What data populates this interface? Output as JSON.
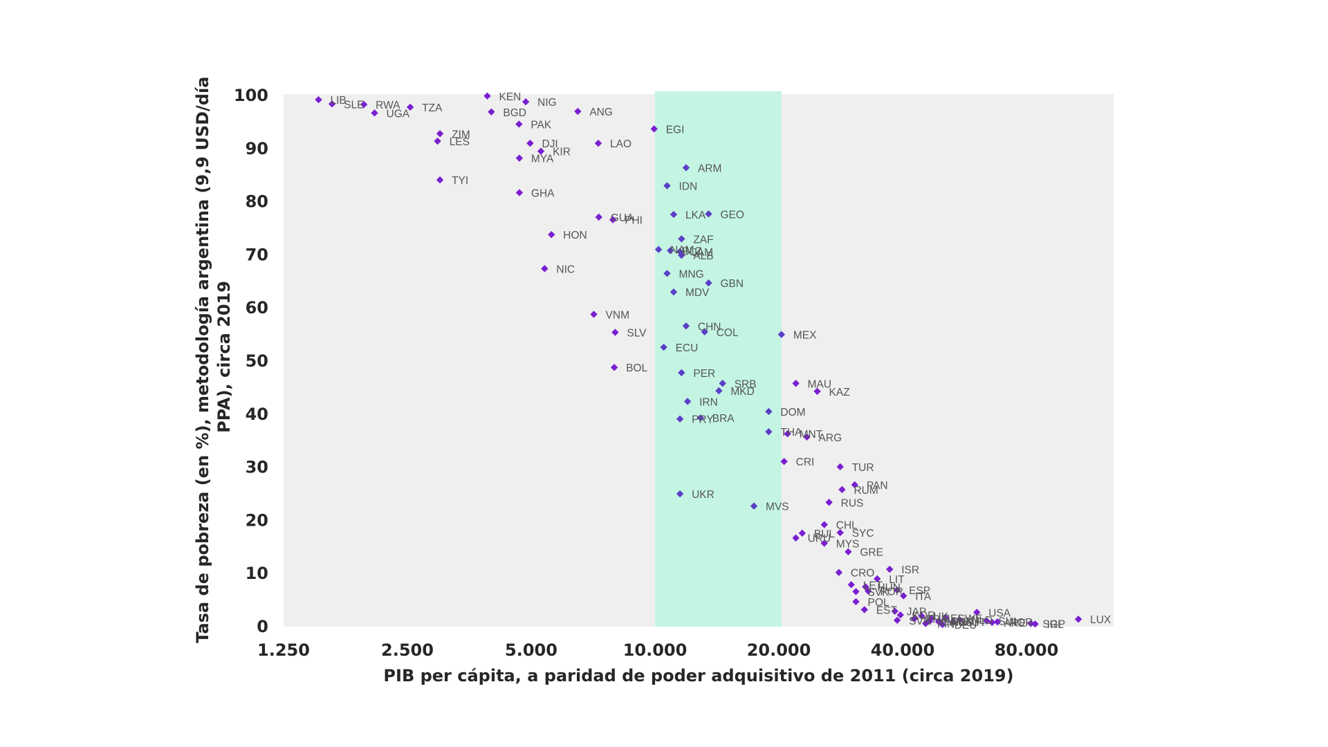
{
  "chart_data": {
    "type": "scatter",
    "title": "",
    "xlabel": "PIB per cápita, a paridad de poder adquisitivo de 2011 (circa 2019)",
    "ylabel_lines": [
      "Tasa de pobreza (en %), metodología argentina (9,9 USD/día",
      "PPA), circa 2019"
    ],
    "x_scale": "log",
    "xlim": [
      1250,
      130000
    ],
    "ylim": [
      0,
      100
    ],
    "x_ticks": [
      {
        "value": 1250,
        "label": "1.250"
      },
      {
        "value": 2500,
        "label": "2.500"
      },
      {
        "value": 5000,
        "label": "5.000"
      },
      {
        "value": 10000,
        "label": "10.000"
      },
      {
        "value": 20000,
        "label": "20.000"
      },
      {
        "value": 40000,
        "label": "40.000"
      },
      {
        "value": 80000,
        "label": "80.000"
      }
    ],
    "y_ticks": [
      {
        "value": 0,
        "label": "0"
      },
      {
        "value": 10,
        "label": "10"
      },
      {
        "value": 20,
        "label": "20"
      },
      {
        "value": 30,
        "label": "30"
      },
      {
        "value": 40,
        "label": "40"
      },
      {
        "value": 50,
        "label": "50"
      },
      {
        "value": 60,
        "label": "60"
      },
      {
        "value": 70,
        "label": "70"
      },
      {
        "value": 80,
        "label": "80"
      },
      {
        "value": 90,
        "label": "90"
      },
      {
        "value": 100,
        "label": "100"
      }
    ],
    "highlight_band": {
      "x_from": 10000,
      "x_to": 20300,
      "color": "#c4f5e3"
    },
    "colors": {
      "plot_background": "#efefef",
      "point": "#7a1fd0",
      "point_in_band": "#5a3fc6",
      "label": "#555555",
      "text": "#262626"
    },
    "grid": false,
    "legend": "none",
    "points": [
      {
        "code": "LIB",
        "x": 1520,
        "y": 99.2
      },
      {
        "code": "SLE",
        "x": 1640,
        "y": 98.4
      },
      {
        "code": "RWA",
        "x": 1960,
        "y": 98.3
      },
      {
        "code": "UGA",
        "x": 2080,
        "y": 96.7
      },
      {
        "code": "TZA",
        "x": 2540,
        "y": 97.8
      },
      {
        "code": "ZIM",
        "x": 3000,
        "y": 92.8
      },
      {
        "code": "LES",
        "x": 2960,
        "y": 91.4
      },
      {
        "code": "TYI",
        "x": 3000,
        "y": 84.1
      },
      {
        "code": "KEN",
        "x": 3910,
        "y": 99.9
      },
      {
        "code": "BGD",
        "x": 4000,
        "y": 96.9
      },
      {
        "code": "NIG",
        "x": 4850,
        "y": 98.8
      },
      {
        "code": "PAK",
        "x": 4670,
        "y": 94.6
      },
      {
        "code": "DJI",
        "x": 4970,
        "y": 91.0
      },
      {
        "code": "KIR",
        "x": 5280,
        "y": 89.5
      },
      {
        "code": "MYA",
        "x": 4680,
        "y": 88.2
      },
      {
        "code": "GHA",
        "x": 4680,
        "y": 81.7
      },
      {
        "code": "ANG",
        "x": 6490,
        "y": 97.0
      },
      {
        "code": "LAO",
        "x": 7280,
        "y": 91.0
      },
      {
        "code": "HON",
        "x": 5600,
        "y": 73.8
      },
      {
        "code": "NIC",
        "x": 5390,
        "y": 67.4
      },
      {
        "code": "GUA",
        "x": 7300,
        "y": 77.1
      },
      {
        "code": "PHI",
        "x": 7900,
        "y": 76.6
      },
      {
        "code": "VNM",
        "x": 7100,
        "y": 58.8
      },
      {
        "code": "SLV",
        "x": 8000,
        "y": 55.4
      },
      {
        "code": "BOL",
        "x": 7960,
        "y": 48.8
      },
      {
        "code": "EGI",
        "x": 9950,
        "y": 93.7
      },
      {
        "code": "ARM",
        "x": 11900,
        "y": 86.4
      },
      {
        "code": "IDN",
        "x": 10700,
        "y": 83.0
      },
      {
        "code": "LKA",
        "x": 11100,
        "y": 77.6
      },
      {
        "code": "GEO",
        "x": 13500,
        "y": 77.7
      },
      {
        "code": "ZAF",
        "x": 11600,
        "y": 73.0
      },
      {
        "code": "NAM",
        "x": 10200,
        "y": 71.0
      },
      {
        "code": "BLZ",
        "x": 10900,
        "y": 70.8
      },
      {
        "code": "JAM",
        "x": 11500,
        "y": 70.6
      },
      {
        "code": "ALB",
        "x": 11600,
        "y": 69.9
      },
      {
        "code": "MNG",
        "x": 10700,
        "y": 66.5
      },
      {
        "code": "GBN",
        "x": 13500,
        "y": 64.7
      },
      {
        "code": "MDV",
        "x": 11100,
        "y": 63.0
      },
      {
        "code": "CHN",
        "x": 11900,
        "y": 56.6
      },
      {
        "code": "COL",
        "x": 13200,
        "y": 55.5
      },
      {
        "code": "MEX",
        "x": 20300,
        "y": 55.0
      },
      {
        "code": "ECU",
        "x": 10500,
        "y": 52.6
      },
      {
        "code": "PER",
        "x": 11600,
        "y": 47.8
      },
      {
        "code": "SRB",
        "x": 14600,
        "y": 45.8
      },
      {
        "code": "MKD",
        "x": 14300,
        "y": 44.4
      },
      {
        "code": "MAU",
        "x": 22000,
        "y": 45.8
      },
      {
        "code": "KAZ",
        "x": 24800,
        "y": 44.3
      },
      {
        "code": "IRN",
        "x": 12000,
        "y": 42.4
      },
      {
        "code": "DOM",
        "x": 18900,
        "y": 40.5
      },
      {
        "code": "PRY",
        "x": 11500,
        "y": 39.1
      },
      {
        "code": "BRA",
        "x": 12900,
        "y": 39.3
      },
      {
        "code": "THA",
        "x": 18900,
        "y": 36.7
      },
      {
        "code": "MNT",
        "x": 21000,
        "y": 36.3
      },
      {
        "code": "ARG",
        "x": 23400,
        "y": 35.7
      },
      {
        "code": "CRI",
        "x": 20600,
        "y": 31.1
      },
      {
        "code": "TUR",
        "x": 28200,
        "y": 30.1
      },
      {
        "code": "PAN",
        "x": 30600,
        "y": 26.7
      },
      {
        "code": "RUM",
        "x": 28500,
        "y": 25.8
      },
      {
        "code": "RUS",
        "x": 26500,
        "y": 23.4
      },
      {
        "code": "UKR",
        "x": 11500,
        "y": 25.0
      },
      {
        "code": "MVS",
        "x": 17400,
        "y": 22.7
      },
      {
        "code": "CHL",
        "x": 25800,
        "y": 19.2
      },
      {
        "code": "SYC",
        "x": 28200,
        "y": 17.7
      },
      {
        "code": "BUL",
        "x": 22800,
        "y": 17.6
      },
      {
        "code": "URU",
        "x": 22000,
        "y": 16.7
      },
      {
        "code": "MYS",
        "x": 25800,
        "y": 15.7
      },
      {
        "code": "GRE",
        "x": 29500,
        "y": 14.1
      },
      {
        "code": "ISR",
        "x": 37200,
        "y": 10.8
      },
      {
        "code": "CRO",
        "x": 28000,
        "y": 10.2
      },
      {
        "code": "LIT",
        "x": 34700,
        "y": 9.0
      },
      {
        "code": "LET",
        "x": 30000,
        "y": 7.9
      },
      {
        "code": "HUN",
        "x": 32500,
        "y": 7.5
      },
      {
        "code": "SVK",
        "x": 30800,
        "y": 6.6
      },
      {
        "code": "POR",
        "x": 33000,
        "y": 6.7
      },
      {
        "code": "ESP",
        "x": 38800,
        "y": 6.9
      },
      {
        "code": "ITA",
        "x": 40200,
        "y": 5.8
      },
      {
        "code": "POL",
        "x": 30800,
        "y": 4.7
      },
      {
        "code": "EST",
        "x": 32300,
        "y": 3.2
      },
      {
        "code": "JAP",
        "x": 38300,
        "y": 2.9
      },
      {
        "code": "KOR",
        "x": 39500,
        "y": 2.2
      },
      {
        "code": "UK",
        "x": 44500,
        "y": 2.0
      },
      {
        "code": "FRA",
        "x": 42700,
        "y": 1.5
      },
      {
        "code": "SVN",
        "x": 38800,
        "y": 1.2
      },
      {
        "code": "BEL",
        "x": 47000,
        "y": 1.6
      },
      {
        "code": "DNK",
        "x": 49000,
        "y": 1.1
      },
      {
        "code": "SWE",
        "x": 51000,
        "y": 1.6
      },
      {
        "code": "AUT",
        "x": 53000,
        "y": 0.9
      },
      {
        "code": "NLD",
        "x": 55000,
        "y": 1.3
      },
      {
        "code": "FIN",
        "x": 45500,
        "y": 0.6
      },
      {
        "code": "DEU",
        "x": 50000,
        "y": 0.4
      },
      {
        "code": "AUS",
        "x": 49000,
        "y": 0.9
      },
      {
        "code": "CAN",
        "x": 46500,
        "y": 1.0
      },
      {
        "code": "USA",
        "x": 60600,
        "y": 2.7
      },
      {
        "code": "SUI",
        "x": 64000,
        "y": 1.1
      },
      {
        "code": "NOR",
        "x": 68000,
        "y": 0.9
      },
      {
        "code": "ARE",
        "x": 66000,
        "y": 0.8
      },
      {
        "code": "SGP",
        "x": 82000,
        "y": 0.6
      },
      {
        "code": "IRL",
        "x": 84000,
        "y": 0.5
      },
      {
        "code": "LUX",
        "x": 107000,
        "y": 1.4
      }
    ]
  }
}
